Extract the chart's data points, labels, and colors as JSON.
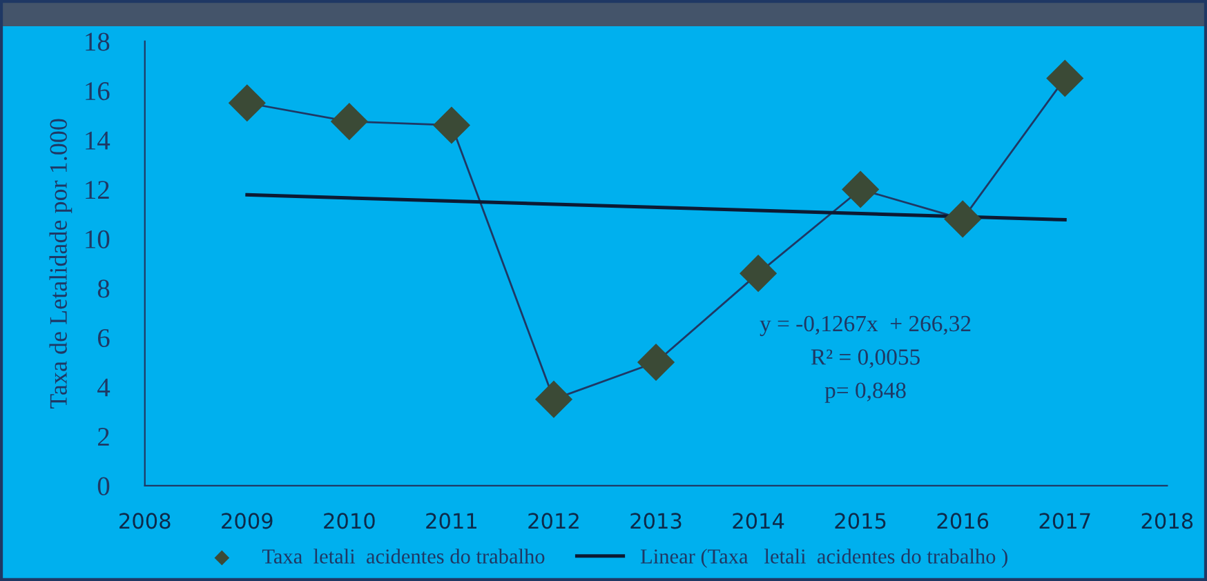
{
  "chart_data": {
    "type": "scatter",
    "ylabel": "Taxa de Letalidade por 1.000",
    "x": [
      2009,
      2010,
      2011,
      2012,
      2013,
      2014,
      2015,
      2016,
      2017
    ],
    "series": [
      {
        "name": "Taxa  letali  acidentes do trabalho",
        "color": "#3b4a36",
        "marker": "diamond",
        "values": [
          15.5,
          14.75,
          14.6,
          3.5,
          5.0,
          8.6,
          12.0,
          10.8,
          16.5
        ]
      },
      {
        "type": "line",
        "color": "#1f3864",
        "marker": "none",
        "values": [
          15.5,
          14.75,
          14.6,
          3.5,
          5.0,
          8.6,
          12.0,
          10.8,
          16.5
        ]
      },
      {
        "name": "Linear (Taxa   letali  acidentes do trabalho )",
        "type": "line",
        "color": "#0d1a33",
        "marker": "none",
        "x": [
          2009,
          2017
        ],
        "values": [
          11.78,
          10.77
        ]
      }
    ],
    "xlim": [
      2008,
      2018
    ],
    "xticks": [
      2008,
      2009,
      2010,
      2011,
      2012,
      2013,
      2014,
      2015,
      2016,
      2017,
      2018
    ],
    "ylim": [
      0,
      18
    ],
    "yticks": [
      0,
      2,
      4,
      6,
      8,
      10,
      12,
      14,
      16,
      18
    ],
    "annotations": [
      "y = -0,1267x  + 266,32",
      "R² = 0,0055",
      "p= 0,848"
    ],
    "grid": false,
    "legend": "bottom"
  }
}
